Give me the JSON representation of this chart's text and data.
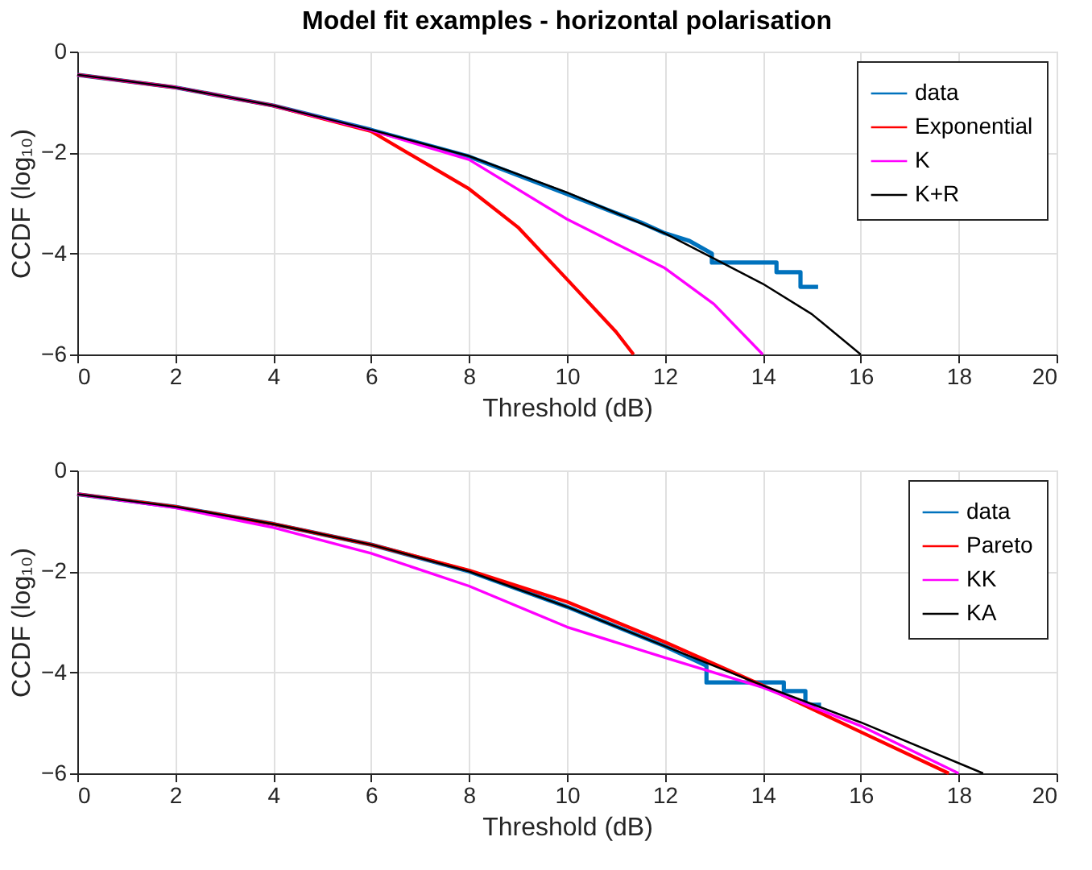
{
  "chart_data": [
    {
      "type": "line",
      "title": "Model fit examples - horizontal polarisation",
      "xlabel": "Threshold (dB)",
      "ylabel": "CCDF (log₁₀)",
      "xlim": [
        0,
        20
      ],
      "ylim": [
        -6,
        0
      ],
      "xticks": [
        0,
        2,
        4,
        6,
        8,
        10,
        12,
        14,
        16,
        18,
        20
      ],
      "yticks": [
        -6,
        -4,
        -2,
        0
      ],
      "grid": true,
      "legend": "top right",
      "series": [
        {
          "name": "data",
          "color": "#0072bd",
          "x": [
            0,
            2,
            4,
            6,
            8,
            10,
            11,
            11.5,
            12,
            12.5,
            12.96,
            12.96,
            14.28,
            14.28,
            14.77,
            14.77,
            15.13
          ],
          "values": [
            -0.46,
            -0.71,
            -1.07,
            -1.55,
            -2.08,
            -2.82,
            -3.2,
            -3.38,
            -3.6,
            -3.75,
            -4.0,
            -4.18,
            -4.18,
            -4.37,
            -4.37,
            -4.66,
            -4.66
          ]
        },
        {
          "name": "Exponential",
          "color": "#ff0000",
          "x": [
            0,
            2,
            4,
            6,
            8,
            9,
            10,
            11,
            11.36
          ],
          "values": [
            -0.46,
            -0.71,
            -1.07,
            -1.58,
            -2.72,
            -3.48,
            -4.51,
            -5.55,
            -6.0
          ]
        },
        {
          "name": "K",
          "color": "#ff00ff",
          "x": [
            0,
            2,
            4,
            6,
            8,
            10,
            12,
            13,
            14
          ],
          "values": [
            -0.46,
            -0.71,
            -1.07,
            -1.56,
            -2.14,
            -3.32,
            -4.29,
            -5.0,
            -6.0
          ]
        },
        {
          "name": "K+R",
          "color": "#000000",
          "x": [
            0,
            2,
            4,
            6,
            8,
            10,
            12,
            13,
            14,
            15,
            16
          ],
          "values": [
            -0.46,
            -0.71,
            -1.07,
            -1.55,
            -2.07,
            -2.79,
            -3.6,
            -4.1,
            -4.6,
            -5.2,
            -6.0
          ]
        }
      ]
    },
    {
      "type": "line",
      "xlabel": "Threshold (dB)",
      "ylabel": "CCDF (log₁₀)",
      "xlim": [
        0,
        20
      ],
      "ylim": [
        -6,
        0
      ],
      "xticks": [
        0,
        2,
        4,
        6,
        8,
        10,
        12,
        14,
        16,
        18,
        20
      ],
      "yticks": [
        -6,
        -4,
        -2,
        0
      ],
      "grid": true,
      "legend": "top right",
      "series": [
        {
          "name": "data",
          "color": "#0072bd",
          "x": [
            0,
            2,
            4,
            6,
            8,
            10,
            12,
            12.85,
            12.85,
            14.43,
            14.43,
            14.87,
            14.87,
            15.19
          ],
          "values": [
            -0.47,
            -0.72,
            -1.06,
            -1.47,
            -2.0,
            -2.7,
            -3.48,
            -3.87,
            -4.2,
            -4.2,
            -4.37,
            -4.37,
            -4.64,
            -4.64
          ]
        },
        {
          "name": "Pareto",
          "color": "#ff0000",
          "x": [
            0,
            2,
            4,
            6,
            8,
            10,
            12,
            14,
            16,
            17.8
          ],
          "values": [
            -0.47,
            -0.72,
            -1.06,
            -1.47,
            -1.98,
            -2.6,
            -3.4,
            -4.26,
            -5.18,
            -6.0
          ]
        },
        {
          "name": "KK",
          "color": "#ff00ff",
          "x": [
            0,
            2,
            4,
            6,
            8,
            10,
            12,
            14,
            16,
            18
          ],
          "values": [
            -0.47,
            -0.74,
            -1.13,
            -1.64,
            -2.29,
            -3.1,
            -3.71,
            -4.3,
            -5.06,
            -6.0
          ]
        },
        {
          "name": "KA",
          "color": "#000000",
          "x": [
            0,
            2,
            4,
            6,
            8,
            10,
            12,
            14,
            16,
            18.5
          ],
          "values": [
            -0.47,
            -0.72,
            -1.06,
            -1.47,
            -2.0,
            -2.7,
            -3.48,
            -4.26,
            -4.99,
            -6.0
          ]
        }
      ]
    }
  ]
}
